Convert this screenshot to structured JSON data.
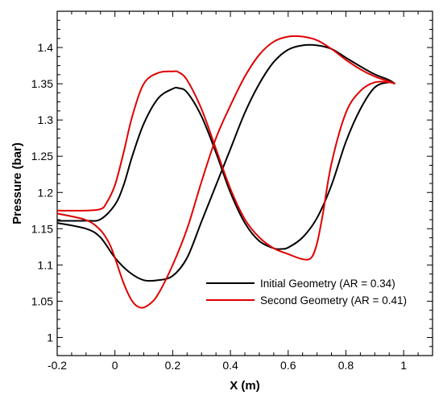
{
  "chart_data": {
    "type": "line",
    "title": "",
    "xlabel": "X (m)",
    "ylabel": "Pressure (bar)",
    "xlim": [
      -0.2,
      1.1
    ],
    "ylim": [
      0.975,
      1.45
    ],
    "x_ticks": [
      -0.2,
      0,
      0.2,
      0.4,
      0.6,
      0.8,
      1
    ],
    "x_tick_labels": [
      "-0.2",
      "0",
      "0.2",
      "0.4",
      "0.6",
      "0.8",
      "1"
    ],
    "y_ticks": [
      1,
      1.05,
      1.1,
      1.15,
      1.2,
      1.25,
      1.3,
      1.35,
      1.4
    ],
    "y_tick_labels": [
      "1",
      "1.05",
      "1.1",
      "1.15",
      "1.2",
      "1.25",
      "1.3",
      "1.35",
      "1.4"
    ],
    "grid": false,
    "legend_position": "bottom-right",
    "series": [
      {
        "name": "Initial Geometry (AR = 0.34)",
        "color": "#000000",
        "upper": {
          "x": [
            -0.2,
            -0.1,
            -0.05,
            0,
            0.03,
            0.06,
            0.1,
            0.15,
            0.2,
            0.22,
            0.25,
            0.3,
            0.35,
            0.4,
            0.45,
            0.5,
            0.55,
            0.575,
            0.6,
            0.65,
            0.7,
            0.75,
            0.8,
            0.85,
            0.9,
            0.95,
            0.97
          ],
          "y": [
            1.161,
            1.161,
            1.163,
            1.183,
            1.21,
            1.25,
            1.295,
            1.33,
            1.343,
            1.344,
            1.338,
            1.305,
            1.255,
            1.2,
            1.158,
            1.133,
            1.123,
            1.122,
            1.124,
            1.138,
            1.165,
            1.21,
            1.27,
            1.315,
            1.345,
            1.352,
            1.35
          ]
        },
        "lower": {
          "x": [
            -0.2,
            -0.1,
            -0.05,
            0,
            0.05,
            0.1,
            0.15,
            0.2,
            0.25,
            0.3,
            0.35,
            0.4,
            0.45,
            0.5,
            0.55,
            0.6,
            0.65,
            0.7,
            0.75,
            0.8,
            0.85,
            0.9,
            0.95,
            0.97
          ],
          "y": [
            1.158,
            1.15,
            1.138,
            1.11,
            1.09,
            1.079,
            1.079,
            1.085,
            1.11,
            1.16,
            1.21,
            1.26,
            1.31,
            1.35,
            1.38,
            1.397,
            1.403,
            1.403,
            1.398,
            1.386,
            1.374,
            1.363,
            1.355,
            1.35
          ]
        }
      },
      {
        "name": "Second Geometry (AR = 0.41)",
        "color": "#e00000",
        "upper": {
          "x": [
            -0.2,
            -0.1,
            -0.05,
            -0.03,
            0,
            0.03,
            0.06,
            0.1,
            0.15,
            0.2,
            0.22,
            0.25,
            0.3,
            0.35,
            0.4,
            0.45,
            0.5,
            0.55,
            0.6,
            0.65,
            0.68,
            0.7,
            0.72,
            0.75,
            0.8,
            0.85,
            0.9,
            0.95,
            0.97
          ],
          "y": [
            1.175,
            1.175,
            1.177,
            1.185,
            1.21,
            1.255,
            1.305,
            1.35,
            1.365,
            1.367,
            1.366,
            1.355,
            1.315,
            1.26,
            1.205,
            1.163,
            1.138,
            1.123,
            1.115,
            1.108,
            1.11,
            1.13,
            1.17,
            1.24,
            1.31,
            1.34,
            1.352,
            1.352,
            1.35
          ]
        },
        "lower": {
          "x": [
            -0.2,
            -0.1,
            -0.05,
            -0.02,
            0,
            0.03,
            0.06,
            0.09,
            0.12,
            0.15,
            0.2,
            0.25,
            0.3,
            0.35,
            0.4,
            0.45,
            0.5,
            0.55,
            0.6,
            0.65,
            0.7,
            0.75,
            0.8,
            0.85,
            0.9,
            0.95,
            0.97
          ],
          "y": [
            1.171,
            1.162,
            1.148,
            1.13,
            1.11,
            1.075,
            1.05,
            1.041,
            1.046,
            1.06,
            1.1,
            1.15,
            1.215,
            1.275,
            1.32,
            1.36,
            1.39,
            1.408,
            1.415,
            1.415,
            1.41,
            1.398,
            1.383,
            1.37,
            1.36,
            1.353,
            1.35
          ]
        }
      }
    ]
  }
}
